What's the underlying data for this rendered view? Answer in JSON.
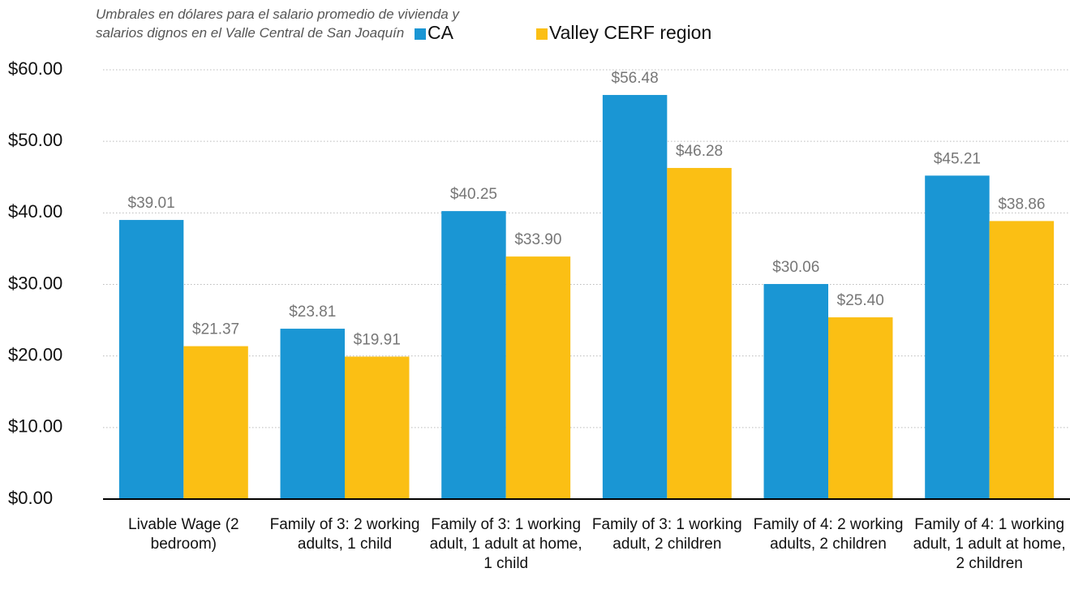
{
  "chart_data": {
    "type": "bar",
    "title": "Umbrales en dólares para el salario promedio de vivienda y salarios dignos en el Valle Central de San Joaquín",
    "categories": [
      "Livable Wage (2 bedroom)",
      "Family of 3: 2 working adults, 1 child",
      "Family of 3: 1 working adult, 1 adult at home, 1 child",
      "Family of 3: 1 working adult, 2 children",
      "Family of 4: 2 working adults, 2 children",
      "Family of 4: 1 working adult, 1 adult at home, 2 children"
    ],
    "series": [
      {
        "name": "CA",
        "color": "#1a96d4",
        "values": [
          39.01,
          23.81,
          40.25,
          56.48,
          30.06,
          45.21
        ],
        "value_labels": [
          "$39.01",
          "$23.81",
          "$40.25",
          "$56.48",
          "$30.06",
          "$45.21"
        ]
      },
      {
        "name": "Valley CERF region",
        "color": "#fbbf14",
        "values": [
          21.37,
          19.91,
          33.9,
          46.28,
          25.4,
          38.86
        ],
        "value_labels": [
          "$21.37",
          "$19.91",
          "$33.90",
          "$46.28",
          "$25.40",
          "$38.86"
        ]
      }
    ],
    "ylim": [
      0,
      60
    ],
    "yticks": [
      {
        "value": 0,
        "label": "$0.00"
      },
      {
        "value": 10,
        "label": "$10.00"
      },
      {
        "value": 20,
        "label": "$20.00"
      },
      {
        "value": 30,
        "label": "$30.00"
      },
      {
        "value": 40,
        "label": "$40.00"
      },
      {
        "value": 50,
        "label": "$50.00"
      },
      {
        "value": 60,
        "label": "$60.00"
      }
    ],
    "grid": true,
    "legend": "top"
  }
}
